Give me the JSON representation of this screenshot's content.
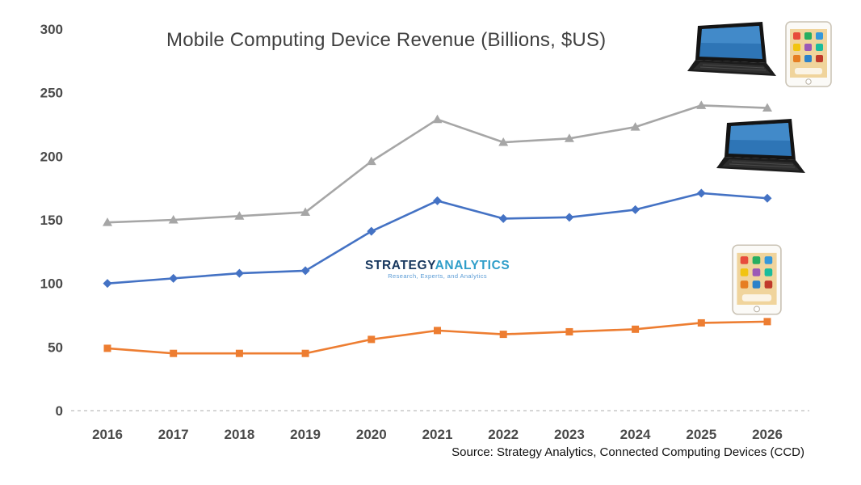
{
  "title": "Mobile Computing Device Revenue (Billions, $US)",
  "source": "Source: Strategy Analytics, Connected Computing Devices (CCD)",
  "watermark": {
    "part1": "STRATEGY",
    "part2": "ANALYTICS",
    "tagline": "Research, Experts, and Analytics"
  },
  "legend_icons": [
    {
      "name": "laptop-and-tablet-icon",
      "series": "combined"
    },
    {
      "name": "laptop-icon",
      "series": "laptop"
    },
    {
      "name": "tablet-icon",
      "series": "tablet"
    }
  ],
  "colors": {
    "combined": "#a6a6a6",
    "laptop": "#4472c4",
    "tablet": "#ed7d31",
    "axis_text": "#4a4a4a",
    "axis_line": "#c9c9c9"
  },
  "chart_data": {
    "type": "line",
    "title": "Mobile Computing Device Revenue (Billions, $US)",
    "xlabel": "",
    "ylabel": "",
    "x": [
      2016,
      2017,
      2018,
      2019,
      2020,
      2021,
      2022,
      2023,
      2024,
      2025,
      2026
    ],
    "yticks": [
      0,
      50,
      100,
      150,
      200,
      250,
      300
    ],
    "ylim": [
      0,
      300
    ],
    "grid": false,
    "legend_position": "right-icons",
    "series": [
      {
        "name": "combined",
        "marker": "triangle",
        "color": "#a6a6a6",
        "values": [
          148,
          150,
          153,
          156,
          196,
          229,
          211,
          214,
          223,
          240,
          238
        ]
      },
      {
        "name": "laptop",
        "marker": "diamond",
        "color": "#4472c4",
        "values": [
          100,
          104,
          108,
          110,
          141,
          165,
          151,
          152,
          158,
          171,
          167
        ]
      },
      {
        "name": "tablet",
        "marker": "square",
        "color": "#ed7d31",
        "values": [
          49,
          45,
          45,
          45,
          56,
          63,
          60,
          62,
          64,
          69,
          70
        ]
      }
    ]
  }
}
